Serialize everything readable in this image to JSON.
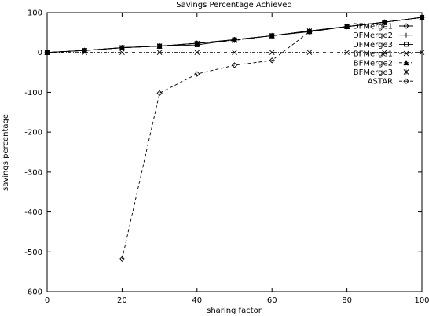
{
  "chart_data": {
    "type": "line",
    "title": "Savings Percentage Achieved",
    "xlabel": "sharing factor",
    "ylabel": "savings percentage",
    "xlim": [
      0,
      100
    ],
    "ylim": [
      -600,
      100
    ],
    "xticks": [
      0,
      20,
      40,
      60,
      80,
      100
    ],
    "yticks": [
      100,
      0,
      -100,
      -200,
      -300,
      -400,
      -500,
      -600
    ],
    "grid": false,
    "legend_position": "top-right",
    "series": [
      {
        "name": "DFMerge1",
        "marker": "diamond",
        "dash": "solid",
        "x": [
          0,
          10,
          20,
          30,
          40,
          50,
          60,
          70,
          80,
          90,
          100
        ],
        "y": [
          0,
          5,
          12,
          16,
          23,
          32,
          42,
          54,
          65,
          76,
          88
        ]
      },
      {
        "name": "DFMerge2",
        "marker": "plus",
        "dash": "solid",
        "x": [
          0,
          10,
          20,
          30,
          40,
          50,
          60,
          70,
          80,
          90,
          100
        ],
        "y": [
          0,
          5,
          12,
          16,
          23,
          32,
          42,
          54,
          65,
          76,
          88
        ]
      },
      {
        "name": "DFMerge3",
        "marker": "square",
        "dash": "solid",
        "x": [
          0,
          10,
          20,
          30,
          40,
          50,
          60,
          70,
          80,
          90,
          100
        ],
        "y": [
          0,
          5,
          12,
          16,
          19,
          32,
          42,
          52,
          65,
          76,
          88
        ]
      },
      {
        "name": "BFMerge1",
        "marker": "cross",
        "dash": "dashdot",
        "x": [
          0,
          10,
          20,
          30,
          40,
          50,
          60,
          70,
          80,
          90,
          100
        ],
        "y": [
          0,
          0,
          0,
          0,
          0,
          0,
          0,
          0,
          0,
          0,
          0
        ]
      },
      {
        "name": "BFMerge2",
        "marker": "triangle",
        "dash": "dashdot",
        "x": [
          0,
          10,
          20,
          30,
          40,
          50,
          60,
          70,
          80,
          90,
          100
        ],
        "y": [
          0,
          5,
          12,
          16,
          23,
          32,
          42,
          54,
          65,
          76,
          88
        ]
      },
      {
        "name": "BFMerge3",
        "marker": "star",
        "dash": "dashdot",
        "x": [
          0,
          10,
          20,
          30,
          40,
          50,
          60,
          70,
          80,
          90,
          100
        ],
        "y": [
          0,
          5,
          12,
          16,
          23,
          30,
          42,
          54,
          65,
          76,
          88
        ]
      },
      {
        "name": "ASTAR",
        "marker": "diamond",
        "dash": "dashed",
        "x": [
          20,
          30,
          40,
          50,
          60,
          70,
          80,
          90,
          100
        ],
        "y": [
          -518,
          -102,
          -54,
          -32,
          -20,
          52,
          65,
          76,
          88
        ]
      }
    ]
  }
}
